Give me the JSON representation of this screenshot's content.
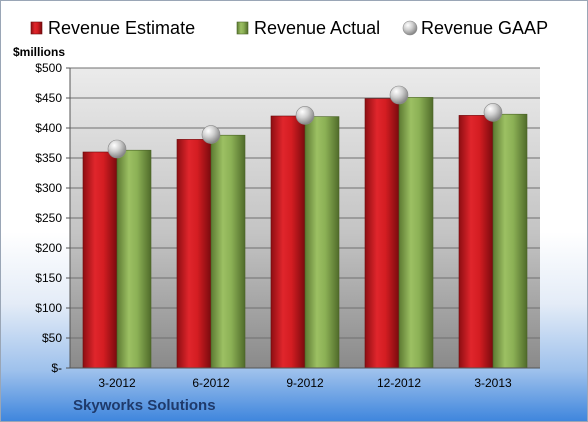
{
  "chart_data": {
    "type": "bar",
    "title": "",
    "ylabel": "$millions",
    "xlabel": "",
    "categories": [
      "3-2012",
      "6-2012",
      "9-2012",
      "12-2012",
      "3-2013"
    ],
    "ylim": [
      0,
      500
    ],
    "yticks": [
      0,
      50,
      100,
      150,
      200,
      250,
      300,
      350,
      400,
      450,
      500
    ],
    "ytick_labels": [
      "$-",
      "$50",
      "$100",
      "$150",
      "$200",
      "$250",
      "$300",
      "$350",
      "$400",
      "$450",
      "$500"
    ],
    "grid": true,
    "legend_position": "top",
    "series": [
      {
        "name": "Revenue Estimate",
        "type": "bar",
        "color": "#c0181e",
        "values": [
          360,
          381,
          420,
          449,
          421
        ]
      },
      {
        "name": "Revenue Actual",
        "type": "bar",
        "color": "#7da04a",
        "values": [
          363,
          388,
          419,
          451,
          423
        ]
      },
      {
        "name": "Revenue GAAP",
        "type": "marker",
        "color": "#b8b8b8",
        "values": [
          365,
          389,
          421,
          455,
          426
        ]
      }
    ]
  },
  "company_name": "Skyworks Solutions"
}
